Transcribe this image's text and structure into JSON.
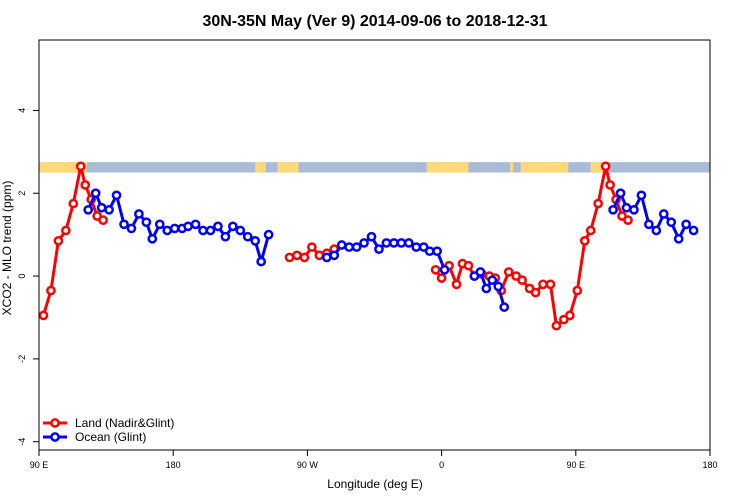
{
  "chart_data": {
    "type": "line",
    "title": "30N-35N May (Ver 9)   2014-09-06 to 2018-12-31",
    "xlabel": "Longitude (deg E)",
    "ylabel": "XCO2 - MLO trend (ppm)",
    "x_ticks": [
      {
        "value": 90,
        "label": "90 E"
      },
      {
        "value": 180,
        "label": "180"
      },
      {
        "value": 270,
        "label": "90 W"
      },
      {
        "value": 360,
        "label": "0"
      },
      {
        "value": 450,
        "label": "90 E"
      },
      {
        "value": 540,
        "label": "180"
      }
    ],
    "y_ticks": [
      {
        "value": -4,
        "label": "-4"
      },
      {
        "value": -2,
        "label": "-2"
      },
      {
        "value": 0,
        "label": "0"
      },
      {
        "value": 2,
        "label": "2"
      },
      {
        "value": 4,
        "label": "4"
      }
    ],
    "xlim": [
      90,
      540
    ],
    "ylim": [
      -4.2,
      5.7
    ],
    "grid": false,
    "legend_position": "bottom-left",
    "land_ocean_band": {
      "y_range": [
        2.5,
        2.75
      ],
      "land_color": "#ffd87a",
      "ocean_color": "#a8bbd8",
      "land_segments": [
        [
          90,
          122
        ],
        [
          235,
          242
        ],
        [
          250,
          264
        ],
        [
          350,
          378
        ],
        [
          406,
          408
        ],
        [
          413,
          445
        ],
        [
          460,
          472
        ]
      ]
    },
    "series": [
      {
        "name": "Land (Nadir&Glint)",
        "color": "#ff0000",
        "segments": [
          [
            [
              93,
              -0.95
            ],
            [
              98,
              -0.35
            ],
            [
              103,
              0.85
            ],
            [
              108,
              1.1
            ],
            [
              113,
              1.75
            ],
            [
              118,
              2.65
            ],
            [
              121,
              2.2
            ],
            [
              125,
              1.85
            ],
            [
              129,
              1.45
            ],
            [
              133,
              1.35
            ]
          ],
          [
            [
              258,
              0.45
            ],
            [
              263,
              0.5
            ],
            [
              268,
              0.45
            ],
            [
              273,
              0.7
            ],
            [
              278,
              0.5
            ],
            [
              283,
              0.55
            ],
            [
              288,
              0.65
            ]
          ],
          [
            [
              356,
              0.15
            ],
            [
              360,
              -0.05
            ],
            [
              365,
              0.25
            ],
            [
              370,
              -0.2
            ],
            [
              374,
              0.3
            ],
            [
              378,
              0.25
            ],
            [
              382,
              0.0
            ],
            [
              387,
              0.05
            ],
            [
              392,
              0.0
            ],
            [
              396,
              -0.05
            ],
            [
              400,
              -0.35
            ],
            [
              405,
              0.1
            ],
            [
              410,
              0.0
            ],
            [
              414,
              -0.1
            ],
            [
              419,
              -0.3
            ],
            [
              423,
              -0.4
            ],
            [
              428,
              -0.2
            ],
            [
              433,
              -0.2
            ],
            [
              437,
              -1.2
            ],
            [
              442,
              -1.05
            ],
            [
              446,
              -0.95
            ],
            [
              451,
              -0.35
            ],
            [
              456,
              0.85
            ],
            [
              460,
              1.1
            ],
            [
              465,
              1.75
            ],
            [
              470,
              2.65
            ],
            [
              473,
              2.2
            ],
            [
              477,
              1.85
            ],
            [
              481,
              1.45
            ],
            [
              485,
              1.35
            ]
          ]
        ]
      },
      {
        "name": "Ocean (Glint)",
        "color": "#0000ff",
        "segments": [
          [
            [
              123,
              1.6
            ],
            [
              128,
              2.0
            ],
            [
              132,
              1.65
            ],
            [
              137,
              1.6
            ],
            [
              142,
              1.95
            ],
            [
              147,
              1.25
            ],
            [
              152,
              1.15
            ],
            [
              157,
              1.5
            ],
            [
              162,
              1.3
            ],
            [
              166,
              0.9
            ],
            [
              171,
              1.25
            ],
            [
              176,
              1.1
            ],
            [
              181,
              1.15
            ],
            [
              186,
              1.15
            ],
            [
              190,
              1.2
            ],
            [
              195,
              1.25
            ],
            [
              200,
              1.1
            ],
            [
              205,
              1.1
            ],
            [
              210,
              1.2
            ],
            [
              215,
              0.95
            ],
            [
              220,
              1.2
            ],
            [
              225,
              1.1
            ],
            [
              230,
              0.95
            ],
            [
              235,
              0.85
            ],
            [
              239,
              0.35
            ],
            [
              244,
              1.0
            ]
          ],
          [
            [
              283,
              0.45
            ],
            [
              288,
              0.5
            ],
            [
              293,
              0.75
            ],
            [
              298,
              0.7
            ],
            [
              303,
              0.7
            ],
            [
              308,
              0.8
            ],
            [
              313,
              0.95
            ],
            [
              318,
              0.65
            ],
            [
              323,
              0.8
            ],
            [
              328,
              0.8
            ],
            [
              333,
              0.8
            ],
            [
              338,
              0.8
            ],
            [
              343,
              0.7
            ],
            [
              348,
              0.7
            ],
            [
              352,
              0.6
            ],
            [
              357,
              0.6
            ],
            [
              362,
              0.15
            ]
          ],
          [
            [
              382,
              0.0
            ],
            [
              386,
              0.1
            ],
            [
              390,
              -0.3
            ],
            [
              394,
              -0.1
            ],
            [
              398,
              -0.25
            ],
            [
              402,
              -0.75
            ]
          ],
          [
            [
              475,
              1.6
            ],
            [
              480,
              2.0
            ],
            [
              484,
              1.65
            ],
            [
              489,
              1.6
            ],
            [
              494,
              1.95
            ],
            [
              499,
              1.25
            ],
            [
              504,
              1.1
            ],
            [
              509,
              1.5
            ],
            [
              514,
              1.3
            ],
            [
              519,
              0.9
            ],
            [
              524,
              1.25
            ],
            [
              529,
              1.1
            ]
          ]
        ]
      }
    ]
  }
}
